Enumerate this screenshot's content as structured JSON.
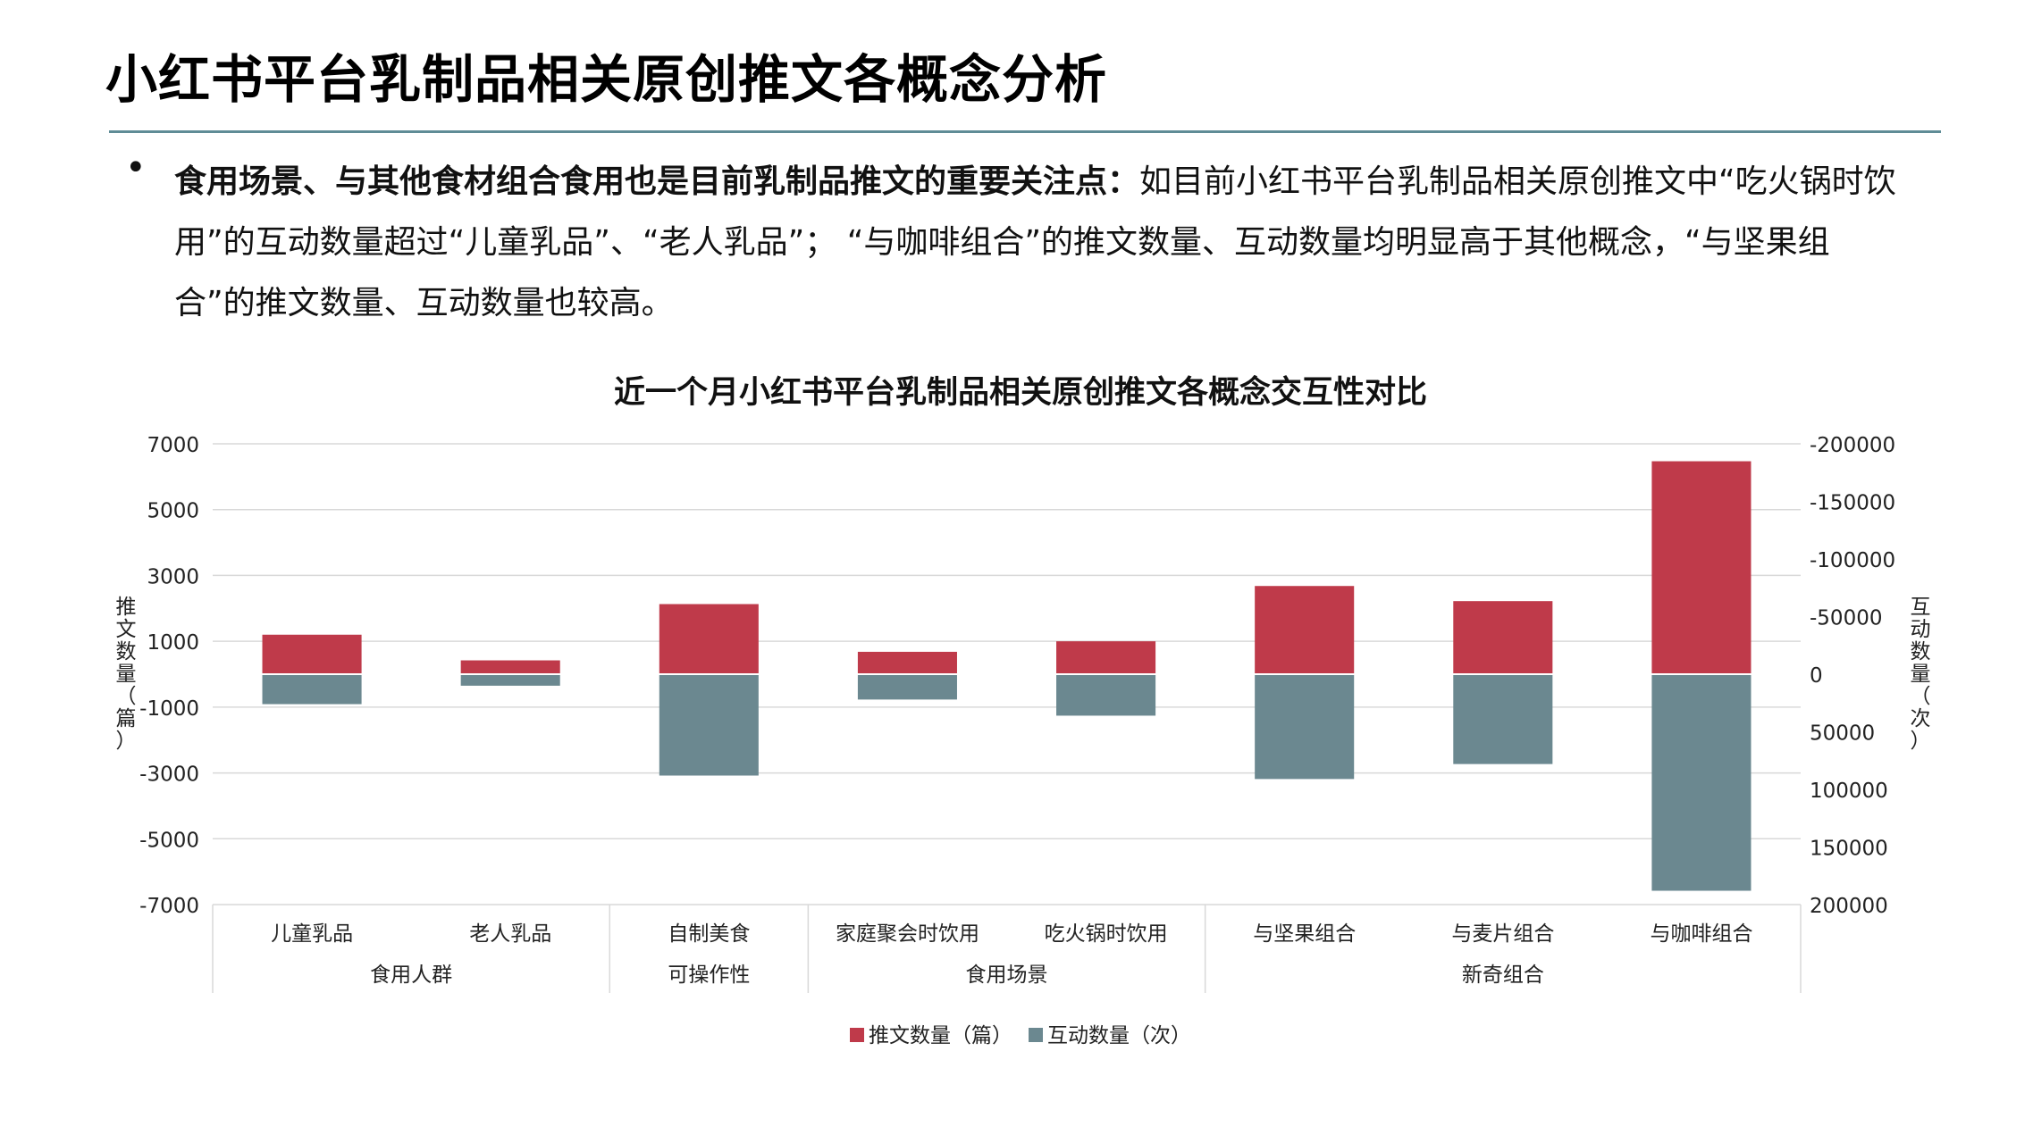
{
  "page": {
    "title": "小红书平台乳制品相关原创推文各概念分析",
    "bullet": {
      "marker": "•",
      "lead": "食用场景、与其他食材组合食用也是目前乳制品推文的重要关注点",
      "sep": "：",
      "body": "如目前小红书平台乳制品相关原创推文中“吃火锅时饮用”的互动数量超过“儿童乳品”、“老人乳品”； “与咖啡组合”的推文数量、互动数量均明显高于其他概念，“与坚果组合”的推文数量、互动数量也较高。"
    }
  },
  "colors": {
    "rule": "#5f8c96",
    "series_posts": "#bf3a4a",
    "series_interactions": "#6b8890",
    "grid": "#d9d9d9",
    "axis_text": "#222222"
  },
  "chart_data": {
    "type": "bar",
    "title": "近一个月小红书平台乳制品相关原创推文各概念交互性对比",
    "categories": [
      "儿童乳品",
      "老人乳品",
      "自制美食",
      "家庭聚会时饮用",
      "吃火锅时饮用",
      "与坚果组合",
      "与麦片组合",
      "与咖啡组合"
    ],
    "groups": [
      {
        "name": "食用人群",
        "categories": [
          "儿童乳品",
          "老人乳品"
        ]
      },
      {
        "name": "可操作性",
        "categories": [
          "自制美食"
        ]
      },
      {
        "name": "食用场景",
        "categories": [
          "家庭聚会时饮用",
          "吃火锅时饮用"
        ]
      },
      {
        "name": "新奇组合",
        "categories": [
          "与坚果组合",
          "与麦片组合",
          "与咖啡组合"
        ]
      }
    ],
    "series": [
      {
        "name": "推文数量（篇）",
        "axis": "left",
        "values": [
          1200,
          420,
          2130,
          680,
          1000,
          2680,
          2220,
          6470
        ]
      },
      {
        "name": "互动数量（次）",
        "axis": "right",
        "values": [
          26000,
          10000,
          88000,
          22000,
          36000,
          91000,
          78000,
          188000
        ]
      }
    ],
    "y_left": {
      "label": "推文数量（篇）",
      "range": [
        -7000,
        7000
      ],
      "ticks": [
        "7000",
        "5000",
        "3000",
        "1000",
        "-1000",
        "-3000",
        "-5000",
        "-7000"
      ]
    },
    "y_right": {
      "label": "互动数量（次）",
      "range": [
        -200000,
        200000
      ],
      "reversed": true,
      "ticks": [
        "-200000",
        "-150000",
        "-100000",
        "-50000",
        "0",
        "50000",
        "100000",
        "150000",
        "200000"
      ]
    },
    "legend": {
      "position": "bottom"
    }
  }
}
